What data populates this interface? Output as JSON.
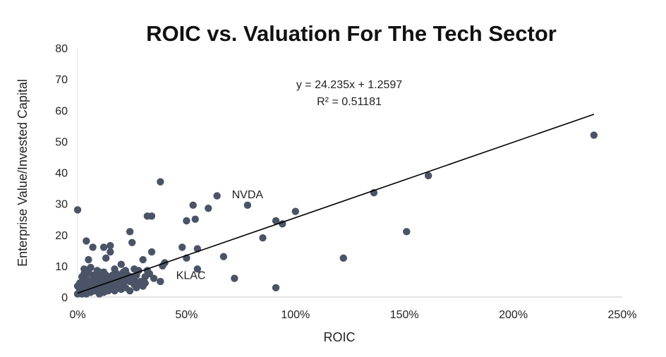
{
  "chart_data": {
    "type": "scatter",
    "title": "ROIC vs. Valuation For The Tech Sector",
    "xlabel": "ROIC",
    "ylabel": "Enterprise Value/Invested Capital",
    "xlim": [
      0,
      2.5
    ],
    "ylim": [
      0,
      80
    ],
    "x_ticks": [
      0,
      0.5,
      1,
      1.5,
      2,
      2.5
    ],
    "x_tick_labels": [
      "0%",
      "50%",
      "100%",
      "150%",
      "200%",
      "250%"
    ],
    "y_ticks": [
      0,
      10,
      20,
      30,
      40,
      50,
      60,
      70,
      80
    ],
    "y_tick_labels": [
      "0",
      "10",
      "20",
      "30",
      "40",
      "50",
      "60",
      "70",
      "80"
    ],
    "grid": false,
    "legend": "none",
    "marker_color": "#4a5466",
    "trendline": {
      "equation": "y = 24.235x + 1.2597",
      "r_squared": "R² = 0.51181",
      "slope": 24.235,
      "intercept": 1.2597,
      "x_range": [
        0,
        2.37
      ]
    },
    "annotations": [
      {
        "text": "NVDA",
        "x": 0.78,
        "y": 29.5
      },
      {
        "text": "KLAC",
        "x": 0.52,
        "y": 3.5
      }
    ],
    "points": [
      [
        0.0,
        28.0
      ],
      [
        0.04,
        18.0
      ],
      [
        0.07,
        16.0
      ],
      [
        0.12,
        16.0
      ],
      [
        0.15,
        16.5
      ],
      [
        0.15,
        14.5
      ],
      [
        0.13,
        12.5
      ],
      [
        0.05,
        12.0
      ],
      [
        0.03,
        9.0
      ],
      [
        0.06,
        9.5
      ],
      [
        0.1,
        8.0
      ],
      [
        0.2,
        10.5
      ],
      [
        0.24,
        21.0
      ],
      [
        0.25,
        17.5
      ],
      [
        0.32,
        26.0
      ],
      [
        0.34,
        26.0
      ],
      [
        0.38,
        37.0
      ],
      [
        0.34,
        14.5
      ],
      [
        0.3,
        12.0
      ],
      [
        0.28,
        8.5
      ],
      [
        0.4,
        11.0
      ],
      [
        0.39,
        10.0
      ],
      [
        0.38,
        5.0
      ],
      [
        0.24,
        2.0
      ],
      [
        0.48,
        16.0
      ],
      [
        0.5,
        24.5
      ],
      [
        0.53,
        29.5
      ],
      [
        0.54,
        25.0
      ],
      [
        0.6,
        28.5
      ],
      [
        0.64,
        32.5
      ],
      [
        0.5,
        12.5
      ],
      [
        0.55,
        15.5
      ],
      [
        0.55,
        9.0
      ],
      [
        0.67,
        13.0
      ],
      [
        0.78,
        29.5
      ],
      [
        0.72,
        6.0
      ],
      [
        0.85,
        19.0
      ],
      [
        0.91,
        24.5
      ],
      [
        0.94,
        23.5
      ],
      [
        1.0,
        27.5
      ],
      [
        0.91,
        3.0
      ],
      [
        1.22,
        12.5
      ],
      [
        1.36,
        33.5
      ],
      [
        1.51,
        21.0
      ],
      [
        1.61,
        39.0
      ],
      [
        2.37,
        52.0
      ],
      [
        0.0,
        1.0
      ],
      [
        0.01,
        2.0
      ],
      [
        0.02,
        3.0
      ],
      [
        0.03,
        1.5
      ],
      [
        0.04,
        4.0
      ],
      [
        0.05,
        2.5
      ],
      [
        0.06,
        5.0
      ],
      [
        0.07,
        3.5
      ],
      [
        0.08,
        6.0
      ],
      [
        0.09,
        4.5
      ],
      [
        0.1,
        2.0
      ],
      [
        0.11,
        5.5
      ],
      [
        0.12,
        3.0
      ],
      [
        0.13,
        7.0
      ],
      [
        0.14,
        4.0
      ],
      [
        0.15,
        6.5
      ],
      [
        0.16,
        2.5
      ],
      [
        0.17,
        5.0
      ],
      [
        0.18,
        7.5
      ],
      [
        0.19,
        3.5
      ],
      [
        0.2,
        6.0
      ],
      [
        0.21,
        4.5
      ],
      [
        0.22,
        8.5
      ],
      [
        0.23,
        5.5
      ],
      [
        0.25,
        6.5
      ],
      [
        0.26,
        4.0
      ],
      [
        0.27,
        7.0
      ],
      [
        0.29,
        5.0
      ],
      [
        0.3,
        3.5
      ],
      [
        0.31,
        6.5
      ],
      [
        0.33,
        7.5
      ],
      [
        0.02,
        6.5
      ],
      [
        0.03,
        7.5
      ],
      [
        0.05,
        8.0
      ],
      [
        0.07,
        7.0
      ],
      [
        0.09,
        6.5
      ],
      [
        0.11,
        7.5
      ],
      [
        0.01,
        4.5
      ],
      [
        0.04,
        6.0
      ],
      [
        0.06,
        1.5
      ],
      [
        0.08,
        2.0
      ],
      [
        0.1,
        1.0
      ],
      [
        0.12,
        1.5
      ],
      [
        0.14,
        2.0
      ],
      [
        0.16,
        3.0
      ],
      [
        0.18,
        4.0
      ],
      [
        0.2,
        2.5
      ],
      [
        0.22,
        3.0
      ],
      [
        0.24,
        5.0
      ],
      [
        0.26,
        6.0
      ],
      [
        0.28,
        4.5
      ],
      [
        0.02,
        1.0
      ],
      [
        0.03,
        5.5
      ],
      [
        0.05,
        4.5
      ],
      [
        0.07,
        2.5
      ],
      [
        0.09,
        3.0
      ],
      [
        0.11,
        4.0
      ],
      [
        0.13,
        5.0
      ],
      [
        0.15,
        3.5
      ],
      [
        0.17,
        2.0
      ],
      [
        0.19,
        6.5
      ],
      [
        0.21,
        5.5
      ],
      [
        0.23,
        7.0
      ],
      [
        0.27,
        3.0
      ],
      [
        0.31,
        4.5
      ],
      [
        0.35,
        6.0
      ],
      [
        0.0,
        3.5
      ],
      [
        0.01,
        2.5
      ],
      [
        0.04,
        1.0
      ],
      [
        0.06,
        3.5
      ],
      [
        0.08,
        4.5
      ],
      [
        0.1,
        5.0
      ],
      [
        0.12,
        6.0
      ],
      [
        0.14,
        5.5
      ],
      [
        0.16,
        7.0
      ],
      [
        0.18,
        5.5
      ],
      [
        0.2,
        4.0
      ],
      [
        0.22,
        6.5
      ],
      [
        0.09,
        8.5
      ],
      [
        0.12,
        8.0
      ],
      [
        0.17,
        9.0
      ],
      [
        0.21,
        8.0
      ],
      [
        0.26,
        9.0
      ],
      [
        0.32,
        8.5
      ]
    ]
  }
}
